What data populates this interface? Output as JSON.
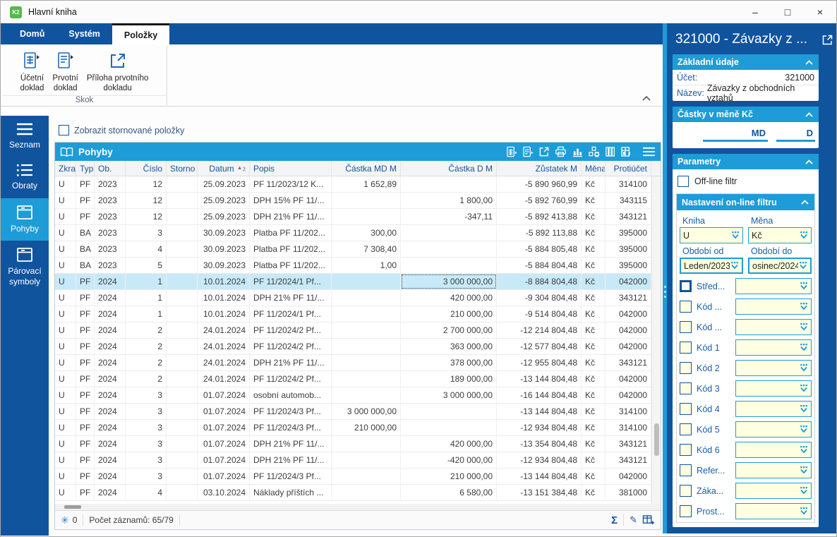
{
  "window": {
    "title": "Hlavní kniha",
    "minimize": "–",
    "maximize": "□",
    "close": "×"
  },
  "ribbon": {
    "tabs": [
      {
        "label": "Domů",
        "active": false
      },
      {
        "label": "Systém",
        "active": false
      },
      {
        "label": "Položky",
        "active": true
      }
    ],
    "group_label": "Skok",
    "buttons": [
      {
        "label": "Účetní\ndoklad",
        "icon": "accounting-document-icon"
      },
      {
        "label": "Prvotní\ndoklad",
        "icon": "source-document-icon"
      },
      {
        "label": "Příloha prvotního\ndokladu",
        "icon": "attachment-open-icon"
      }
    ]
  },
  "sidebar": {
    "items": [
      {
        "label": "Seznam",
        "icon": "menu-icon",
        "active": false
      },
      {
        "label": "Obraty",
        "icon": "list-icon",
        "active": false
      },
      {
        "label": "Pohyby",
        "icon": "crate-icon",
        "active": true
      },
      {
        "label": "Párovací symboly",
        "icon": "crate-icon",
        "active": false
      }
    ]
  },
  "main": {
    "show_cancelled": {
      "label": "Zobrazit stornované položky",
      "checked": false
    },
    "table": {
      "title": "Pohyby",
      "toolbar_icons": [
        "document-grid-icon",
        "document-icon",
        "open-external-icon",
        "print-icon",
        "chart-icon",
        "olap-icon",
        "columns-icon",
        "excel-export-icon",
        "menu-icon"
      ],
      "columns": [
        {
          "label": "Zkra",
          "align": "l"
        },
        {
          "label": "Typ",
          "align": "l"
        },
        {
          "label": "Ob.",
          "align": "l"
        },
        {
          "label": "Číslo",
          "align": "r"
        },
        {
          "label": "Storno",
          "align": "l"
        },
        {
          "label": "Datum",
          "align": "r",
          "sort": {
            "marker": "▲",
            "order": "3"
          }
        },
        {
          "label": "Popis",
          "align": "l"
        },
        {
          "label": "Částka MD M",
          "align": "r"
        },
        {
          "label": "Částka D M",
          "align": "r"
        },
        {
          "label": "Zůstatek M",
          "align": "r"
        },
        {
          "label": "Měna",
          "align": "l"
        },
        {
          "label": "Protiúčet",
          "align": "r"
        }
      ],
      "rows": [
        [
          "U",
          "PF",
          "2023",
          "12",
          "",
          "25.09.2023",
          "PF 11/2023/12 K...",
          "1 652,89",
          "",
          "-5 890 960,99",
          "Kč",
          "314100"
        ],
        [
          "U",
          "PF",
          "2023",
          "12",
          "",
          "25.09.2023",
          "DPH 15% PF 11/...",
          "",
          "1 800,00",
          "-5 892 760,99",
          "Kč",
          "343115"
        ],
        [
          "U",
          "PF",
          "2023",
          "12",
          "",
          "25.09.2023",
          "DPH 21% PF 11/...",
          "",
          "-347,11",
          "-5 892 413,88",
          "Kč",
          "343121"
        ],
        [
          "U",
          "BA",
          "2023",
          "3",
          "",
          "30.09.2023",
          "Platba PF 11/202...",
          "300,00",
          "",
          "-5 892 113,88",
          "Kč",
          "395000"
        ],
        [
          "U",
          "BA",
          "2023",
          "4",
          "",
          "30.09.2023",
          "Platba PF 11/202...",
          "7 308,40",
          "",
          "-5 884 805,48",
          "Kč",
          "395000"
        ],
        [
          "U",
          "BA",
          "2023",
          "5",
          "",
          "30.09.2023",
          "Platba PF 11/202...",
          "1,00",
          "",
          "-5 884 804,48",
          "Kč",
          "395000"
        ],
        [
          "U",
          "PF",
          "2024",
          "1",
          "",
          "10.01.2024",
          "PF 11/2024/1 Pf...",
          "",
          "3 000 000,00",
          "-8 884 804,48",
          "Kč",
          "042000"
        ],
        [
          "U",
          "PF",
          "2024",
          "1",
          "",
          "10.01.2024",
          "DPH 21% PF 11/...",
          "",
          "420 000,00",
          "-9 304 804,48",
          "Kč",
          "343121"
        ],
        [
          "U",
          "PF",
          "2024",
          "1",
          "",
          "10.01.2024",
          "PF 11/2024/1 Pf...",
          "",
          "210 000,00",
          "-9 514 804,48",
          "Kč",
          "042000"
        ],
        [
          "U",
          "PF",
          "2024",
          "2",
          "",
          "24.01.2024",
          "PF 11/2024/2 Pf...",
          "",
          "2 700 000,00",
          "-12 214 804,48",
          "Kč",
          "042000"
        ],
        [
          "U",
          "PF",
          "2024",
          "2",
          "",
          "24.01.2024",
          "PF 11/2024/2 Pf...",
          "",
          "363 000,00",
          "-12 577 804,48",
          "Kč",
          "042000"
        ],
        [
          "U",
          "PF",
          "2024",
          "2",
          "",
          "24.01.2024",
          "DPH 21% PF 11/...",
          "",
          "378 000,00",
          "-12 955 804,48",
          "Kč",
          "343121"
        ],
        [
          "U",
          "PF",
          "2024",
          "2",
          "",
          "24.01.2024",
          "PF 11/2024/2 Pf...",
          "",
          "189 000,00",
          "-13 144 804,48",
          "Kč",
          "042000"
        ],
        [
          "U",
          "PF",
          "2024",
          "3",
          "",
          "01.07.2024",
          "osobní automob...",
          "",
          "3 000 000,00",
          "-16 144 804,48",
          "Kč",
          "042000"
        ],
        [
          "U",
          "PF",
          "2024",
          "3",
          "",
          "01.07.2024",
          "PF 11/2024/3 Pf...",
          "3 000 000,00",
          "",
          "-13 144 804,48",
          "Kč",
          "314100"
        ],
        [
          "U",
          "PF",
          "2024",
          "3",
          "",
          "01.07.2024",
          "PF 11/2024/3 Pf...",
          "210 000,00",
          "",
          "-12 934 804,48",
          "Kč",
          "314100"
        ],
        [
          "U",
          "PF",
          "2024",
          "3",
          "",
          "01.07.2024",
          "DPH 21% PF 11/...",
          "",
          "420 000,00",
          "-13 354 804,48",
          "Kč",
          "343121"
        ],
        [
          "U",
          "PF",
          "2024",
          "3",
          "",
          "01.07.2024",
          "DPH 21% PF 11/...",
          "",
          "-420 000,00",
          "-12 934 804,48",
          "Kč",
          "343121"
        ],
        [
          "U",
          "PF",
          "2024",
          "3",
          "",
          "01.07.2024",
          "PF 11/2024/3 Pf...",
          "",
          "210 000,00",
          "-13 144 804,48",
          "Kč",
          "042000"
        ],
        [
          "U",
          "PF",
          "2024",
          "4",
          "",
          "03.10.2024",
          "Náklady příštích ...",
          "",
          "6 580,00",
          "-13 151 384,48",
          "Kč",
          "381000"
        ]
      ],
      "selected_row": 6,
      "selected_cell_col": 8
    },
    "status_bar": {
      "freeze_count": "0",
      "records_label": "Počet záznamů: 65/79",
      "right_icons": [
        "sum-icon",
        "edit-icon",
        "add-record-icon"
      ]
    }
  },
  "right_panel": {
    "title": "321000 - Závazky z ...",
    "basic": {
      "header": "Základní údaje",
      "account_label": "Účet:",
      "account_value": "321000",
      "name_label": "Název:",
      "name_value": "Závazky z obchodních vztahů"
    },
    "amounts": {
      "header": "Částky v měně Kč",
      "columns": [
        "MD",
        "D"
      ]
    },
    "parameters": {
      "header": "Parametry",
      "offline_label": "Off-line filtr",
      "offline_checked": false,
      "online_filter": {
        "header": "Nastavení on-line filtru",
        "combos": [
          {
            "label": "Kniha",
            "value": "U",
            "thick": false
          },
          {
            "label": "Měna",
            "value": "Kč",
            "thick": false
          },
          {
            "label": "Období od",
            "value": "Leden/2023",
            "thick": true
          },
          {
            "label": "Období do",
            "value": "osinec/2024",
            "thick": true
          }
        ],
        "filter_rows": [
          {
            "label": "Střed...",
            "focused": true
          },
          {
            "label": "Kód ...",
            "focused": false
          },
          {
            "label": "Kód ...",
            "focused": false
          },
          {
            "label": "Kód 1",
            "focused": false
          },
          {
            "label": "Kód 2",
            "focused": false
          },
          {
            "label": "Kód 3",
            "focused": false
          },
          {
            "label": "Kód 4",
            "focused": false
          },
          {
            "label": "Kód 5",
            "focused": false
          },
          {
            "label": "Kód 6",
            "focused": false
          },
          {
            "label": "Refer...",
            "focused": false
          },
          {
            "label": "Záka...",
            "focused": false
          },
          {
            "label": "Prost...",
            "focused": false
          }
        ]
      }
    }
  },
  "colors": {
    "dark_blue": "#10549e",
    "accent_blue": "#1e9cd7",
    "selection": "#c7e9f8",
    "input_yellow": "#ffffe1"
  }
}
